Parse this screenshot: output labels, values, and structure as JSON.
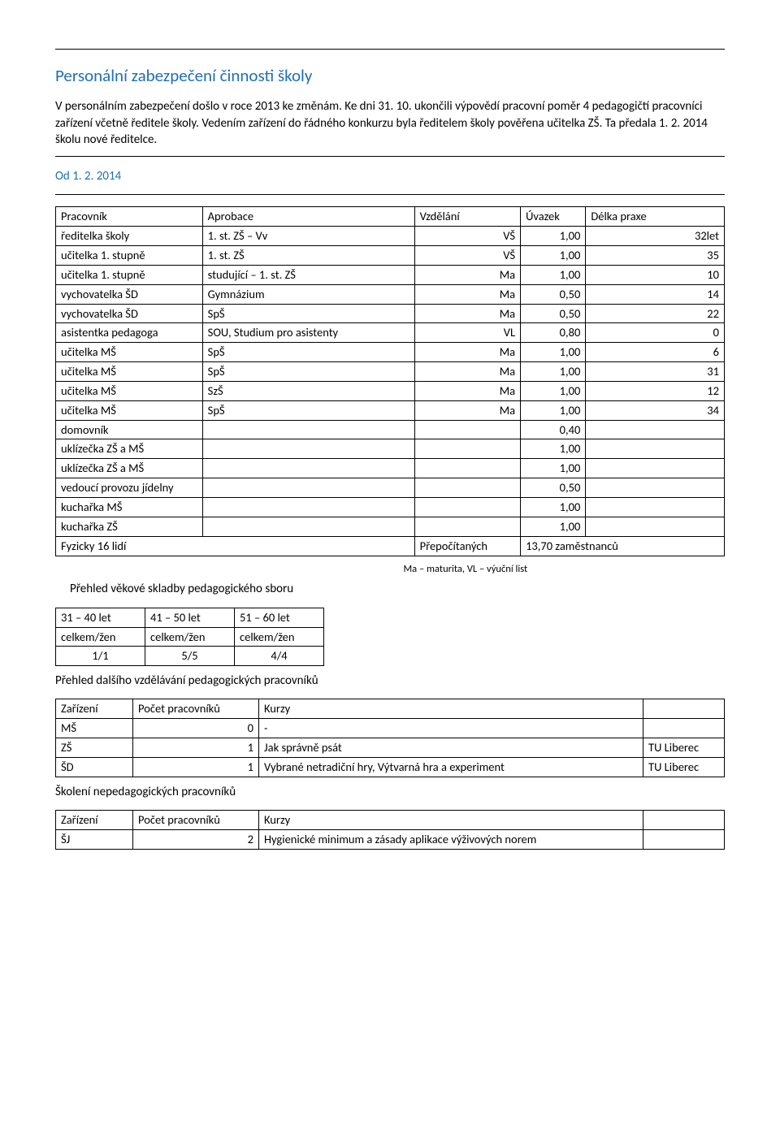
{
  "title": "Personální zabezpečení činnosti školy",
  "intro": "V personálním zabezpečení došlo v roce 2013 ke změnám. Ke dni 31. 10. ukončili výpovědí pracovní poměr 4 pedagogičtí pracovníci zařízení včetně ředitele školy. Vedením zařízení do řádného konkurzu byla ředitelem školy pověřena učitelka ZŠ. Ta předala 1. 2. 2014 školu nové ředitelce.",
  "subhead": "Od 1. 2. 2014",
  "staff_table": {
    "columns": [
      "Pracovník",
      "Aprobace",
      "Vzdělání",
      "Úvazek",
      "Délka praxe"
    ],
    "rows": [
      [
        "ředitelka školy",
        "1. st. ZŠ – Vv",
        "VŠ",
        "1,00",
        "32let"
      ],
      [
        "učitelka 1. stupně",
        "1. st. ZŠ",
        "VŠ",
        "1,00",
        "35"
      ],
      [
        "učitelka 1. stupně",
        "studující – 1. st. ZŠ",
        "Ma",
        "1,00",
        "10"
      ],
      [
        "vychovatelka ŠD",
        "Gymnázium",
        "Ma",
        "0,50",
        "14"
      ],
      [
        "vychovatelka ŠD",
        "SpŠ",
        "Ma",
        "0,50",
        "22"
      ],
      [
        "asistentka pedagoga",
        "SOU, Studium pro asistenty",
        "VL",
        "0,80",
        "0"
      ],
      [
        "učitelka MŠ",
        "SpŠ",
        "Ma",
        "1,00",
        "6"
      ],
      [
        "učitelka MŠ",
        "SpŠ",
        "Ma",
        "1,00",
        "31"
      ],
      [
        "učitelka MŠ",
        "SzŠ",
        "Ma",
        "1,00",
        "12"
      ],
      [
        "učitelka MŠ",
        "SpŠ",
        "Ma",
        "1,00",
        "34"
      ],
      [
        "domovník",
        "",
        "",
        "0,40",
        ""
      ],
      [
        "uklízečka ZŠ a MŠ",
        "",
        "",
        "1,00",
        ""
      ],
      [
        "uklízečka ZŠ a MŠ",
        "",
        "",
        "1,00",
        ""
      ],
      [
        "vedoucí provozu jídelny",
        "",
        "",
        "0,50",
        ""
      ],
      [
        "kuchařka MŠ",
        "",
        "",
        "1,00",
        ""
      ],
      [
        "kuchařka ZŠ",
        "",
        "",
        "1,00",
        ""
      ]
    ],
    "summary_left": "Fyzicky 16 lidí",
    "summary_mid": "Přepočítaných",
    "summary_right": "13,70 zaměstnanců",
    "legend": "Ma – maturita, VL – výuční list"
  },
  "age_heading": "Přehled věkové skladby pedagogického sboru",
  "age_table": {
    "row1": [
      "31 – 40 let",
      "41 – 50 let",
      "51 – 60 let"
    ],
    "row2": [
      "celkem/žen",
      "celkem/žen",
      "celkem/žen"
    ],
    "row3": [
      "1/1",
      "5/5",
      "4/4"
    ]
  },
  "training_heading": "Přehled dalšího vzdělávání pedagogických pracovníků",
  "training_table": {
    "columns": [
      "Zařízení",
      "Počet pracovníků",
      "Kurzy",
      ""
    ],
    "rows": [
      [
        "MŠ",
        "0",
        "-",
        ""
      ],
      [
        "ZŠ",
        "1",
        "Jak správně psát",
        "TU Liberec"
      ],
      [
        "ŠD",
        "1",
        "Vybrané netradiční hry, Výtvarná hra a experiment",
        "TU Liberec"
      ]
    ]
  },
  "nonped_heading": "Školení nepedagogických pracovníků",
  "nonped_table": {
    "columns": [
      "Zařízení",
      "Počet pracovníků",
      "Kurzy",
      ""
    ],
    "rows": [
      [
        "ŠJ",
        "2",
        "Hygienické minimum a zásady aplikace výživových norem",
        ""
      ]
    ]
  }
}
